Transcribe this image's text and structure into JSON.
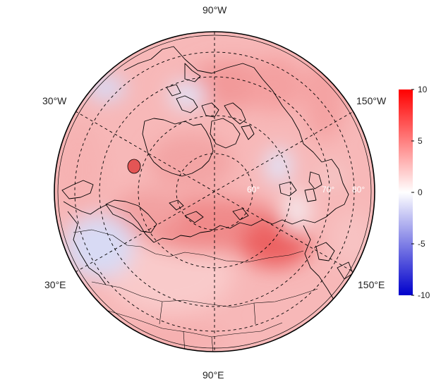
{
  "map": {
    "projection": "north-polar stereographic",
    "field": "anomaly",
    "longitude_labels": {
      "top": "90°W",
      "bottom": "90°E",
      "upper_left": "30°W",
      "upper_right": "150°W",
      "lower_left": "30°E",
      "lower_right": "150°E"
    },
    "latitude_labels": [
      "60°",
      "70°",
      "80°"
    ]
  },
  "colorbar": {
    "ticks": [
      "10",
      "5",
      "0",
      "-5",
      "-10"
    ],
    "range": [
      -10,
      10
    ],
    "colors": {
      "high": "#ff0000",
      "mid": "#ffffff",
      "low": "#0000cc"
    }
  },
  "colors": {
    "background_field": "#f7b8b8",
    "strong_warm": "#f06a6a",
    "cool": "#cdd0f2",
    "coastline": "#000000",
    "graticule": "#000000"
  }
}
